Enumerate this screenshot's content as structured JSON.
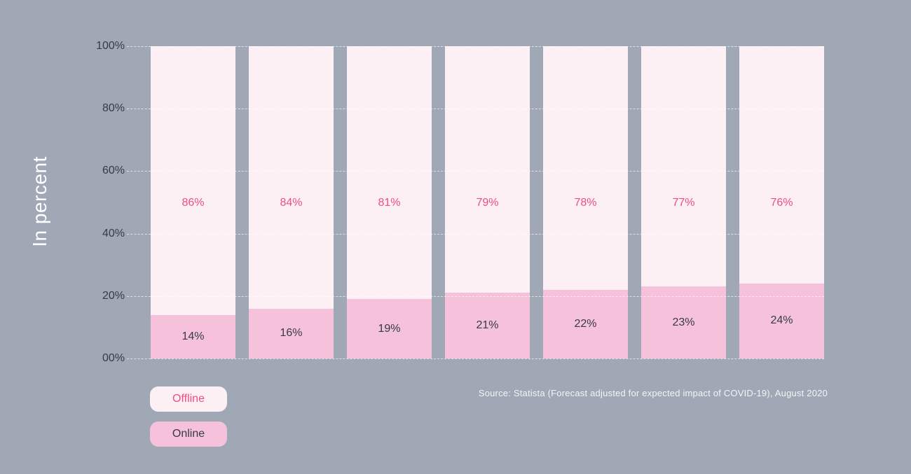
{
  "chart_data": {
    "type": "bar",
    "stacked": true,
    "orientation": "vertical",
    "title": "",
    "xlabel": "",
    "ylabel": "In percent",
    "ylim": [
      0,
      100
    ],
    "y_tick_labels": [
      "100%",
      "80%",
      "60%",
      "40%",
      "20%",
      "00%"
    ],
    "y_tick_values": [
      100,
      80,
      60,
      40,
      20,
      0
    ],
    "categories": [
      "",
      "",
      "",
      "",
      "",
      "",
      ""
    ],
    "series": [
      {
        "name": "Offline",
        "values": [
          86,
          84,
          81,
          79,
          78,
          77,
          76
        ]
      },
      {
        "name": "Online",
        "values": [
          14,
          16,
          19,
          21,
          22,
          23,
          24
        ]
      }
    ],
    "grid": "horizontal dashed",
    "legend_position": "bottom-left"
  },
  "legend": {
    "offline_label": "Offline",
    "online_label": "Online"
  },
  "source": "Source: Statista (Forecast adjusted for expected impact of COVID-19), August 2020",
  "colors": {
    "background": "#9FA8B4",
    "offline_fill": "#FCF0F5",
    "online_fill": "#F5C1DB",
    "offline_text": "#EE4D86",
    "online_text": "#363A49",
    "axis_text": "#363A49",
    "light_text": "#FFFFFF"
  }
}
